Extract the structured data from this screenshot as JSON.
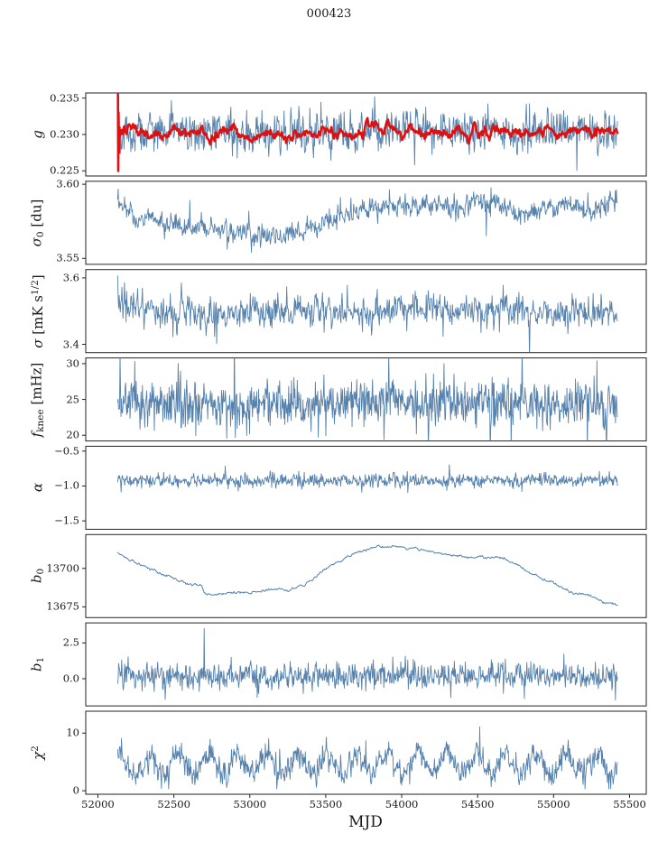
{
  "chart_data": {
    "type": "line",
    "title": "000423",
    "xlabel": "MJD",
    "seed": 42,
    "x_start": 52130,
    "x_end": 55420,
    "xlim": [
      51920,
      55610
    ],
    "xticks": [
      52000,
      52500,
      53000,
      53500,
      54000,
      54500,
      55000,
      55500
    ],
    "xtick_labels": [
      "52000",
      "52500",
      "53000",
      "53500",
      "54000",
      "54500",
      "55000",
      "55500"
    ],
    "colors": {
      "primary": "#5581ac",
      "overlay": "#dd1111",
      "axis": "#222222"
    },
    "panels": [
      {
        "id": "g",
        "label_parts": [
          {
            "t": "g",
            "i": true
          }
        ],
        "ylim": [
          0.2243,
          0.2357
        ],
        "yticks": [
          0.225,
          0.23,
          0.235
        ],
        "ytick_labels": [
          "0.225",
          "0.230",
          "0.235"
        ],
        "series": [
          {
            "name": "g-per-scan",
            "color": "#5581ac",
            "lw": 0.9,
            "n": 950,
            "rho": 0.3,
            "noise": 0.0013,
            "tail": 0.05,
            "trend": [
              [
                52130,
                0.23
              ],
              [
                52400,
                0.2303
              ],
              [
                53000,
                0.2302
              ],
              [
                53500,
                0.2303
              ],
              [
                54000,
                0.2307
              ],
              [
                54500,
                0.2304
              ],
              [
                55000,
                0.2305
              ],
              [
                55420,
                0.2306
              ]
            ]
          },
          {
            "name": "g-smoothed",
            "color": "#dd1111",
            "lw": 2.6,
            "n": 800,
            "rho": 0.85,
            "noise": 0.00028,
            "x_start": 52150,
            "start_spike": [
              [
                52132,
                0.2355
              ],
              [
                52134,
                0.225
              ],
              [
                52136,
                0.233
              ],
              [
                52139,
                0.2275
              ],
              [
                52142,
                0.231
              ],
              [
                52146,
                0.2298
              ]
            ],
            "trend": [
              [
                52150,
                0.23
              ],
              [
                52600,
                0.2301
              ],
              [
                53200,
                0.2301
              ],
              [
                53600,
                0.2303
              ],
              [
                54000,
                0.2308
              ],
              [
                54300,
                0.2306
              ],
              [
                54700,
                0.2303
              ],
              [
                55000,
                0.2305
              ],
              [
                55250,
                0.2308
              ],
              [
                55420,
                0.2302
              ]
            ]
          }
        ]
      },
      {
        "id": "sigma0",
        "label_parts": [
          {
            "t": "σ",
            "i": true
          },
          {
            "t": "0",
            "pos": "sub"
          },
          {
            "t": " [du]"
          }
        ],
        "ylim": [
          3.546,
          3.602
        ],
        "yticks": [
          3.55,
          3.6
        ],
        "ytick_labels": [
          "3.55",
          "3.60"
        ],
        "series": [
          {
            "name": "sigma0",
            "color": "#5581ac",
            "lw": 0.9,
            "n": 950,
            "rho": 0.25,
            "noise": 0.0035,
            "tail": 0.05,
            "trend": [
              [
                52130,
                3.586
              ],
              [
                52250,
                3.579
              ],
              [
                52500,
                3.573
              ],
              [
                52700,
                3.571
              ],
              [
                52900,
                3.567
              ],
              [
                53050,
                3.565
              ],
              [
                53200,
                3.566
              ],
              [
                53400,
                3.57
              ],
              [
                53550,
                3.576
              ],
              [
                53700,
                3.582
              ],
              [
                53850,
                3.585
              ],
              [
                54000,
                3.584
              ],
              [
                54150,
                3.586
              ],
              [
                54300,
                3.585
              ],
              [
                54500,
                3.587
              ],
              [
                54650,
                3.584
              ],
              [
                54800,
                3.581
              ],
              [
                54950,
                3.583
              ],
              [
                55100,
                3.585
              ],
              [
                55250,
                3.583
              ],
              [
                55420,
                3.589
              ]
            ]
          }
        ]
      },
      {
        "id": "sigma",
        "label_parts": [
          {
            "t": "σ",
            "i": true
          },
          {
            "t": " [mK s"
          },
          {
            "t": "1/2",
            "pos": "sup"
          },
          {
            "t": "]"
          }
        ],
        "ylim": [
          3.375,
          3.625
        ],
        "yticks": [
          3.4,
          3.6
        ],
        "ytick_labels": [
          "3.4",
          "3.6"
        ],
        "series": [
          {
            "name": "sigma",
            "color": "#5581ac",
            "lw": 0.9,
            "n": 950,
            "rho": 0.3,
            "noise": 0.022,
            "tail": 0.06,
            "trend": [
              [
                52130,
                3.505
              ],
              [
                52800,
                3.492
              ],
              [
                53500,
                3.498
              ],
              [
                54300,
                3.508
              ],
              [
                54900,
                3.502
              ],
              [
                55420,
                3.49
              ]
            ]
          }
        ]
      },
      {
        "id": "fknee",
        "label_parts": [
          {
            "t": "f",
            "i": true
          },
          {
            "t": "knee",
            "pos": "sub"
          },
          {
            "t": " [mHz]"
          }
        ],
        "ylim": [
          19.2,
          30.8
        ],
        "yticks": [
          20,
          25,
          30
        ],
        "ytick_labels": [
          "20",
          "25",
          "30"
        ],
        "series": [
          {
            "name": "fknee",
            "color": "#5581ac",
            "lw": 0.9,
            "n": 1050,
            "rho": 0.15,
            "noise": 1.5,
            "tail": 0.08,
            "trend": [
              [
                52130,
                24.4
              ],
              [
                53000,
                24.2
              ],
              [
                54000,
                24.6
              ],
              [
                55420,
                24.1
              ]
            ]
          }
        ]
      },
      {
        "id": "alpha",
        "label_parts": [
          {
            "t": "α",
            "i": true
          }
        ],
        "ylim": [
          -1.62,
          -0.43
        ],
        "yticks": [
          -1.5,
          -1.0,
          -0.5
        ],
        "ytick_labels": [
          "−1.5",
          "−1.0",
          "−0.5"
        ],
        "series": [
          {
            "name": "alpha",
            "color": "#5581ac",
            "lw": 0.9,
            "n": 1000,
            "rho": 0.2,
            "noise": 0.045,
            "tail": 0.05,
            "trend": [
              [
                52130,
                -0.92
              ],
              [
                55420,
                -0.92
              ]
            ]
          }
        ]
      },
      {
        "id": "b0",
        "label_parts": [
          {
            "t": "b",
            "i": true
          },
          {
            "t": "0",
            "pos": "sub"
          }
        ],
        "ylim": [
          13668,
          13722
        ],
        "yticks": [
          13675,
          13700
        ],
        "ytick_labels": [
          "13675",
          "13700"
        ],
        "series": [
          {
            "name": "b0",
            "color": "#5581ac",
            "lw": 1.0,
            "n": 800,
            "rho": 0.75,
            "noise": 0.35,
            "trend": [
              [
                52130,
                13710
              ],
              [
                52200,
                13706
              ],
              [
                52300,
                13701
              ],
              [
                52400,
                13697
              ],
              [
                52500,
                13693
              ],
              [
                52600,
                13690
              ],
              [
                52680,
                13689
              ],
              [
                52705,
                13684
              ],
              [
                52750,
                13683
              ],
              [
                52900,
                13684
              ],
              [
                53000,
                13685
              ],
              [
                53100,
                13686
              ],
              [
                53200,
                13687
              ],
              [
                53260,
                13686
              ],
              [
                53350,
                13689
              ],
              [
                53450,
                13696
              ],
              [
                53550,
                13703
              ],
              [
                53650,
                13708
              ],
              [
                53750,
                13712
              ],
              [
                53850,
                13714
              ],
              [
                53950,
                13714
              ],
              [
                54050,
                13713
              ],
              [
                54150,
                13712
              ],
              [
                54250,
                13710
              ],
              [
                54350,
                13708
              ],
              [
                54450,
                13707
              ],
              [
                54550,
                13708
              ],
              [
                54650,
                13707
              ],
              [
                54750,
                13703
              ],
              [
                54850,
                13697
              ],
              [
                54950,
                13692
              ],
              [
                55050,
                13688
              ],
              [
                55150,
                13684
              ],
              [
                55250,
                13681
              ],
              [
                55350,
                13678
              ],
              [
                55420,
                13676
              ]
            ]
          }
        ]
      },
      {
        "id": "b1",
        "label_parts": [
          {
            "t": "b",
            "i": true
          },
          {
            "t": "1",
            "pos": "sub"
          }
        ],
        "ylim": [
          -1.9,
          3.9
        ],
        "yticks": [
          0.0,
          2.5
        ],
        "ytick_labels": [
          "0.0",
          "2.5"
        ],
        "series": [
          {
            "name": "b1",
            "color": "#5581ac",
            "lw": 0.9,
            "n": 1000,
            "rho": 0.2,
            "noise": 0.42,
            "tail": 0.05,
            "trend": [
              [
                52130,
                0.2
              ],
              [
                55420,
                0.2
              ]
            ],
            "spikes": [
              [
                52700,
                3.5
              ],
              [
                53050,
                -1.3
              ],
              [
                55408,
                -1.5
              ]
            ]
          }
        ]
      },
      {
        "id": "chi2",
        "label_parts": [
          {
            "t": "χ",
            "i": true
          },
          {
            "t": "2",
            "pos": "sup"
          }
        ],
        "ylim": [
          -0.6,
          13.8
        ],
        "yticks": [
          0,
          10
        ],
        "ytick_labels": [
          "0",
          "10"
        ],
        "series": [
          {
            "name": "chi2",
            "color": "#5581ac",
            "lw": 0.9,
            "n": 1050,
            "rho": 0.25,
            "noise": 1.05,
            "tail": 0.05,
            "clamp_min": 0.35,
            "osc": {
              "period": 196,
              "amp": 1.7,
              "phase": 1.2
            },
            "trend": [
              [
                52130,
                4.6
              ],
              [
                53300,
                4.4
              ],
              [
                54200,
                4.8
              ],
              [
                55420,
                4.5
              ]
            ]
          }
        ]
      }
    ]
  }
}
